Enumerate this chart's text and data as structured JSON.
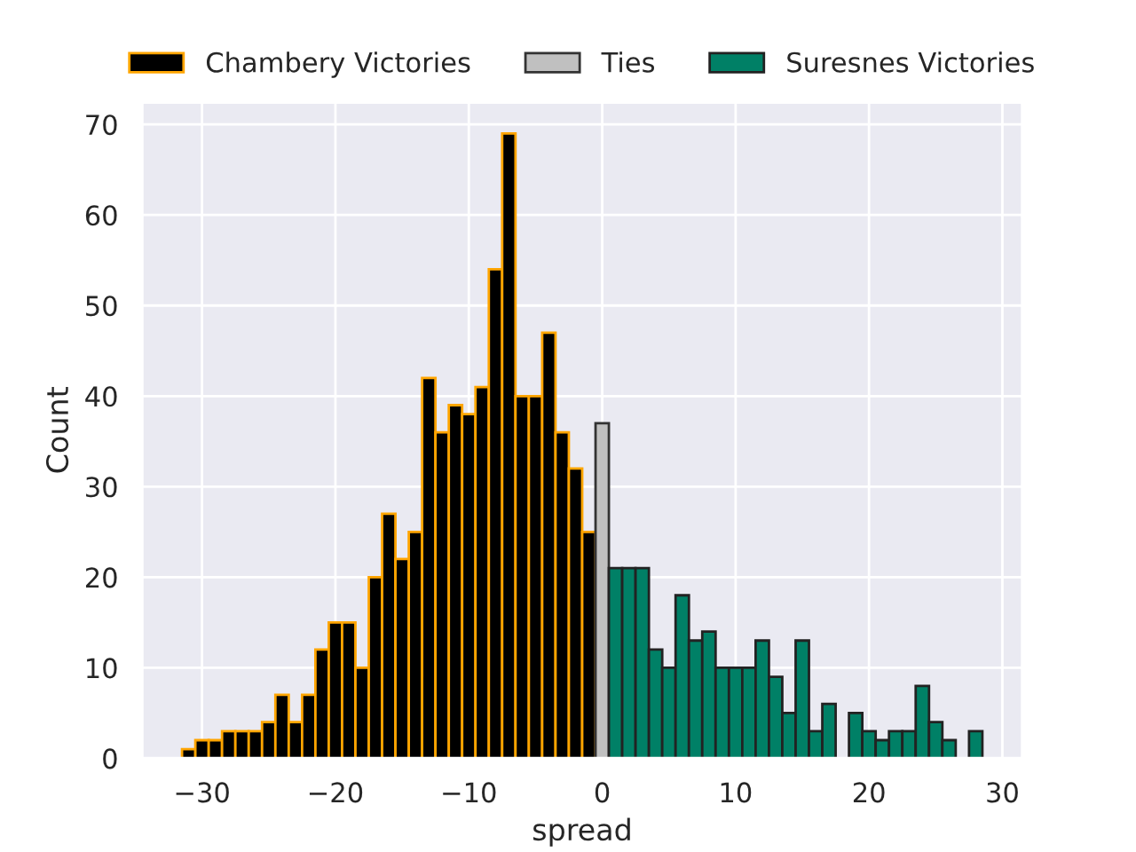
{
  "chart_data": {
    "type": "histogram",
    "xlabel": "spread",
    "ylabel": "Count",
    "bins": [
      -31.5,
      -30.5,
      -29.5,
      -28.5,
      -27.5,
      -26.5,
      -25.5,
      -24.5,
      -23.5,
      -22.5,
      -21.5,
      -20.5,
      -19.5,
      -18.5,
      -17.5,
      -16.5,
      -15.5,
      -14.5,
      -13.5,
      -12.5,
      -11.5,
      -10.5,
      -9.5,
      -8.5,
      -7.5,
      -6.5,
      -5.5,
      -4.5,
      -3.5,
      -2.5,
      -1.5,
      -0.5,
      0.5,
      1.5,
      2.5,
      3.5,
      4.5,
      5.5,
      6.5,
      7.5,
      8.5,
      9.5,
      10.5,
      11.5,
      12.5,
      13.5,
      14.5,
      15.5,
      16.5,
      17.5,
      18.5,
      19.5,
      20.5,
      21.5,
      22.5,
      23.5,
      24.5,
      25.5,
      26.5,
      27.5,
      28.5
    ],
    "series": [
      {
        "name": "Chambery Victories",
        "color": "#000000",
        "values": [
          1,
          2,
          2,
          3,
          3,
          3,
          4,
          7,
          4,
          7,
          12,
          15,
          15,
          10,
          20,
          27,
          22,
          25,
          42,
          36,
          39,
          38,
          41,
          54,
          69,
          40,
          40,
          47,
          36,
          32,
          25,
          null,
          null,
          null,
          null,
          null,
          null,
          null,
          null,
          null,
          null,
          null,
          null,
          null,
          null,
          null,
          null,
          null,
          null,
          null,
          null,
          null,
          null,
          null,
          null,
          null,
          null,
          null,
          null,
          null
        ]
      },
      {
        "name": "Ties",
        "color": "#c0c0c0",
        "values": [
          null,
          null,
          null,
          null,
          null,
          null,
          null,
          null,
          null,
          null,
          null,
          null,
          null,
          null,
          null,
          null,
          null,
          null,
          null,
          null,
          null,
          null,
          null,
          null,
          null,
          null,
          null,
          null,
          null,
          null,
          null,
          37,
          null,
          null,
          null,
          null,
          null,
          null,
          null,
          null,
          null,
          null,
          null,
          null,
          null,
          null,
          null,
          null,
          null,
          null,
          null,
          null,
          null,
          null,
          null,
          null,
          null,
          null,
          null,
          null
        ]
      },
      {
        "name": "Suresnes Victories",
        "color": "#008066",
        "values": [
          null,
          null,
          null,
          null,
          null,
          null,
          null,
          null,
          null,
          null,
          null,
          null,
          null,
          null,
          null,
          null,
          null,
          null,
          null,
          null,
          null,
          null,
          null,
          null,
          null,
          null,
          null,
          null,
          null,
          null,
          null,
          null,
          21,
          21,
          21,
          12,
          10,
          18,
          13,
          14,
          10,
          10,
          10,
          13,
          9,
          5,
          13,
          3,
          6,
          0,
          5,
          3,
          2,
          3,
          3,
          8,
          4,
          2,
          0,
          3
        ]
      }
    ],
    "xlim": [
      -34.5,
      31.5
    ],
    "ylim": [
      0,
      72.45
    ],
    "xticks": [
      {
        "value": -30,
        "label": "−30"
      },
      {
        "value": -20,
        "label": "−20"
      },
      {
        "value": -10,
        "label": "−10"
      },
      0,
      10,
      20,
      30
    ],
    "yticks": [
      0,
      10,
      20,
      30,
      40,
      50,
      60,
      70
    ],
    "grid": true,
    "legend": "top"
  }
}
